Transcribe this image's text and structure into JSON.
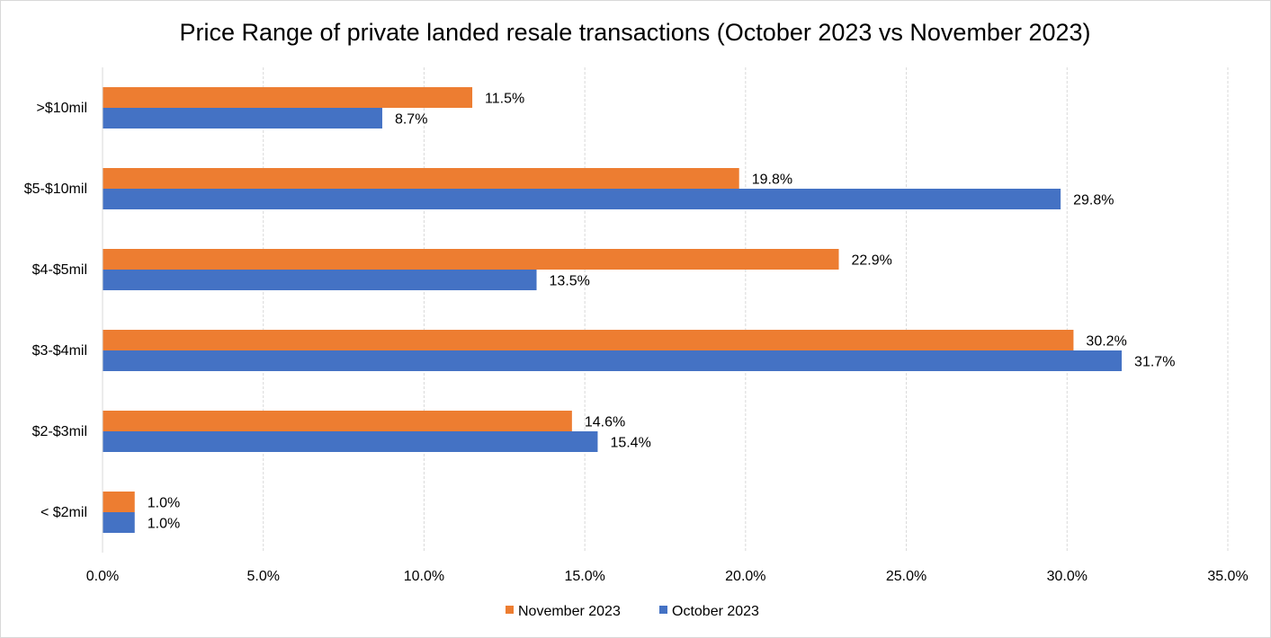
{
  "chart_data": {
    "type": "bar",
    "orientation": "horizontal",
    "title": "Price Range of private landed resale transactions (October 2023 vs November 2023)",
    "categories": [
      ">$10mil",
      "$5-$10mil",
      "$4-$5mil",
      "$3-$4mil",
      "$2-$3mil",
      "< $2mil"
    ],
    "series": [
      {
        "name": "November 2023",
        "color": "#ed7d31",
        "values": [
          11.5,
          19.8,
          22.9,
          30.2,
          14.6,
          1.0
        ],
        "labels": [
          "11.5%",
          "19.8%",
          "22.9%",
          "30.2%",
          "14.6%",
          "1.0%"
        ]
      },
      {
        "name": "October 2023",
        "color": "#4472c4",
        "values": [
          8.7,
          29.8,
          13.5,
          31.7,
          15.4,
          1.0
        ],
        "labels": [
          "8.7%",
          "29.8%",
          "13.5%",
          "31.7%",
          "15.4%",
          "1.0%"
        ]
      }
    ],
    "xlim": [
      0,
      35
    ],
    "xticks": [
      0,
      5,
      10,
      15,
      20,
      25,
      30,
      35
    ],
    "xtick_labels": [
      "0.0%",
      "5.0%",
      "10.0%",
      "15.0%",
      "20.0%",
      "25.0%",
      "30.0%",
      "35.0%"
    ],
    "grid": true,
    "legend": "bottom"
  }
}
